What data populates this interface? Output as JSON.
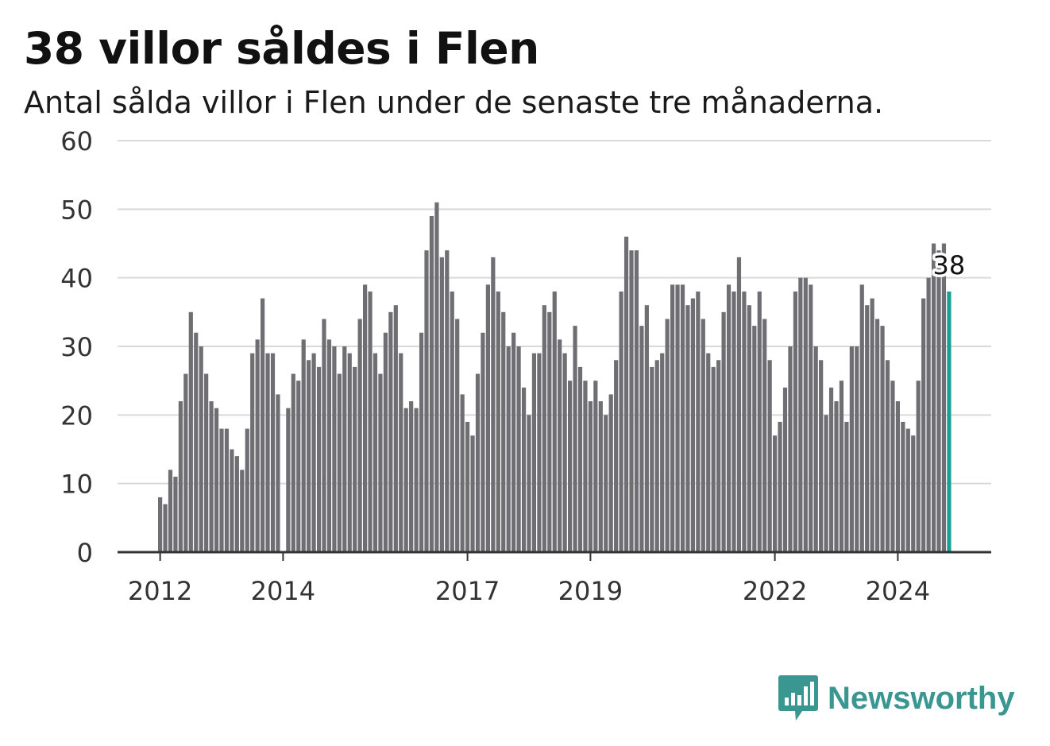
{
  "title": "38 villor såldes i Flen",
  "subtitle": "Antal sålda villor i Flen under de senaste tre månaderna.",
  "brand": {
    "name": "Newsworthy"
  },
  "colors": {
    "bar": "#6e6e73",
    "highlight": "#1a9e96",
    "grid": "#d9d9d9",
    "axis": "#333333",
    "brand": "#3a9690"
  },
  "chart_data": {
    "type": "bar",
    "title": "38 villor såldes i Flen",
    "subtitle": "Antal sålda villor i Flen under de senaste tre månaderna.",
    "x_start": "2012-01",
    "interval": "month",
    "ylim": [
      0,
      60
    ],
    "yticks": [
      0,
      10,
      20,
      30,
      40,
      50,
      60
    ],
    "xticks": [
      {
        "label": "2012",
        "index": 0
      },
      {
        "label": "2014",
        "index": 24
      },
      {
        "label": "2017",
        "index": 60
      },
      {
        "label": "2019",
        "index": 84
      },
      {
        "label": "2022",
        "index": 120
      },
      {
        "label": "2024",
        "index": 144
      }
    ],
    "grid": true,
    "highlight_label": "38",
    "values": [
      8,
      7,
      12,
      11,
      22,
      26,
      35,
      32,
      30,
      26,
      22,
      21,
      18,
      18,
      15,
      14,
      12,
      18,
      29,
      31,
      37,
      29,
      29,
      23,
      null,
      21,
      26,
      25,
      31,
      28,
      29,
      27,
      34,
      31,
      30,
      26,
      30,
      29,
      27,
      34,
      39,
      38,
      29,
      26,
      32,
      35,
      36,
      29,
      21,
      22,
      21,
      32,
      44,
      49,
      51,
      43,
      44,
      38,
      34,
      23,
      19,
      17,
      26,
      32,
      39,
      43,
      38,
      35,
      30,
      32,
      30,
      24,
      20,
      29,
      29,
      36,
      35,
      38,
      31,
      29,
      25,
      33,
      27,
      25,
      22,
      25,
      22,
      20,
      23,
      28,
      38,
      46,
      44,
      44,
      33,
      36,
      27,
      28,
      29,
      34,
      39,
      39,
      39,
      36,
      37,
      38,
      34,
      29,
      27,
      28,
      35,
      39,
      38,
      43,
      38,
      36,
      33,
      38,
      34,
      28,
      17,
      19,
      24,
      30,
      38,
      40,
      40,
      39,
      30,
      28,
      20,
      24,
      22,
      25,
      19,
      30,
      30,
      39,
      36,
      37,
      34,
      33,
      28,
      25,
      22,
      19,
      18,
      17,
      25,
      37,
      40,
      45,
      44,
      45,
      38
    ]
  }
}
